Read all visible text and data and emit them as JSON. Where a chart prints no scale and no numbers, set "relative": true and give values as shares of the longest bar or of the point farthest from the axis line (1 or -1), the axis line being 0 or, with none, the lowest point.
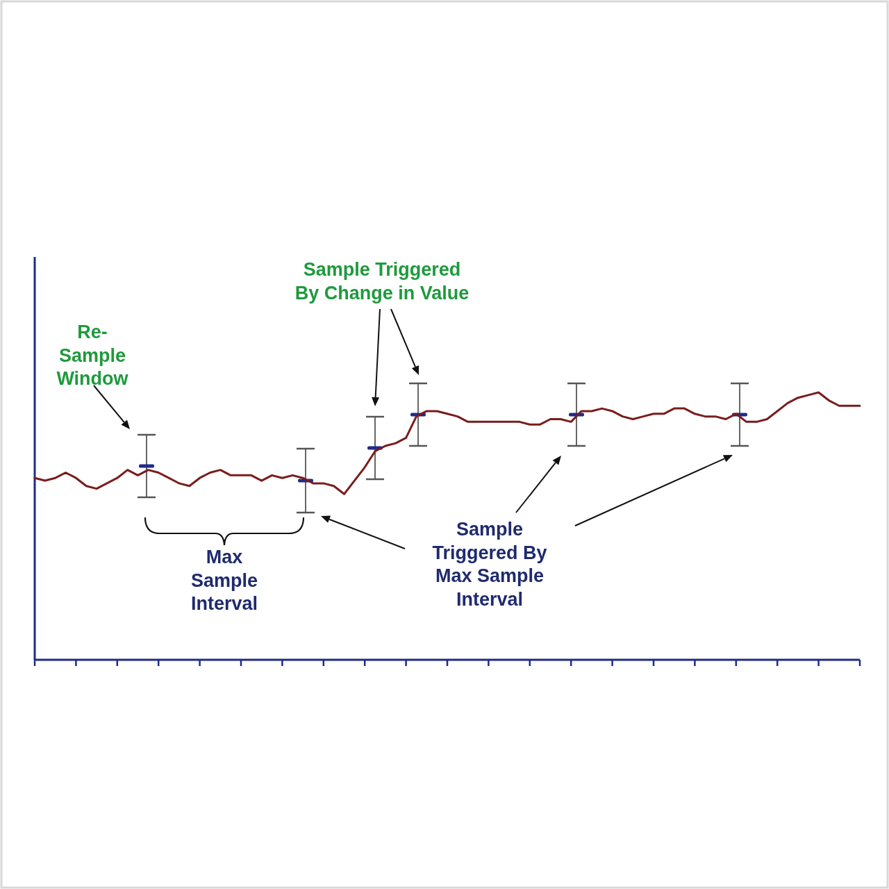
{
  "chart_data": {
    "type": "line",
    "relative": true,
    "categories": [
      null,
      null,
      null,
      null,
      null,
      null,
      null,
      null,
      null,
      null,
      null,
      null,
      null,
      null,
      null,
      null,
      null,
      null,
      null,
      null,
      null,
      null,
      null,
      null,
      null,
      null,
      null,
      null,
      null,
      null,
      null,
      null,
      null,
      null,
      null,
      null,
      null,
      null,
      null,
      null,
      null,
      null,
      null,
      null,
      null,
      null,
      null,
      null,
      null,
      null,
      null,
      null,
      null,
      null,
      null,
      null,
      null,
      null,
      null,
      null,
      null,
      null,
      null,
      null,
      null,
      null,
      null,
      null,
      null,
      null,
      null,
      null,
      null,
      null,
      null,
      null,
      null,
      null,
      null,
      null,
      null
    ],
    "series": [
      {
        "color": "#7a1c1c",
        "values": [
          0.68,
          0.67,
          0.68,
          0.7,
          0.68,
          0.65,
          0.64,
          0.66,
          0.68,
          0.71,
          0.69,
          0.71,
          0.7,
          0.68,
          0.66,
          0.65,
          0.68,
          0.7,
          0.71,
          0.69,
          0.69,
          0.69,
          0.67,
          0.69,
          0.68,
          0.69,
          0.68,
          0.66,
          0.66,
          0.65,
          0.62,
          0.67,
          0.72,
          0.78,
          0.8,
          0.81,
          0.83,
          0.91,
          0.93,
          0.93,
          0.92,
          0.91,
          0.89,
          0.89,
          0.89,
          0.89,
          0.89,
          0.89,
          0.88,
          0.88,
          0.9,
          0.9,
          0.89,
          0.93,
          0.93,
          0.94,
          0.93,
          0.91,
          0.9,
          0.91,
          0.92,
          0.92,
          0.94,
          0.94,
          0.92,
          0.91,
          0.91,
          0.9,
          0.92,
          0.89,
          0.89,
          0.9,
          0.93,
          0.96,
          0.98,
          0.99,
          1,
          0.97,
          0.95,
          0.95,
          0.95
        ]
      }
    ],
    "annotations": [
      "Sample Triggered\nBy Change in Value",
      "Re-\nSample\nWindow",
      "Max\nSample\nInterval",
      "Sample\nTriggered By\nMax Sample\nInterval"
    ]
  }
}
